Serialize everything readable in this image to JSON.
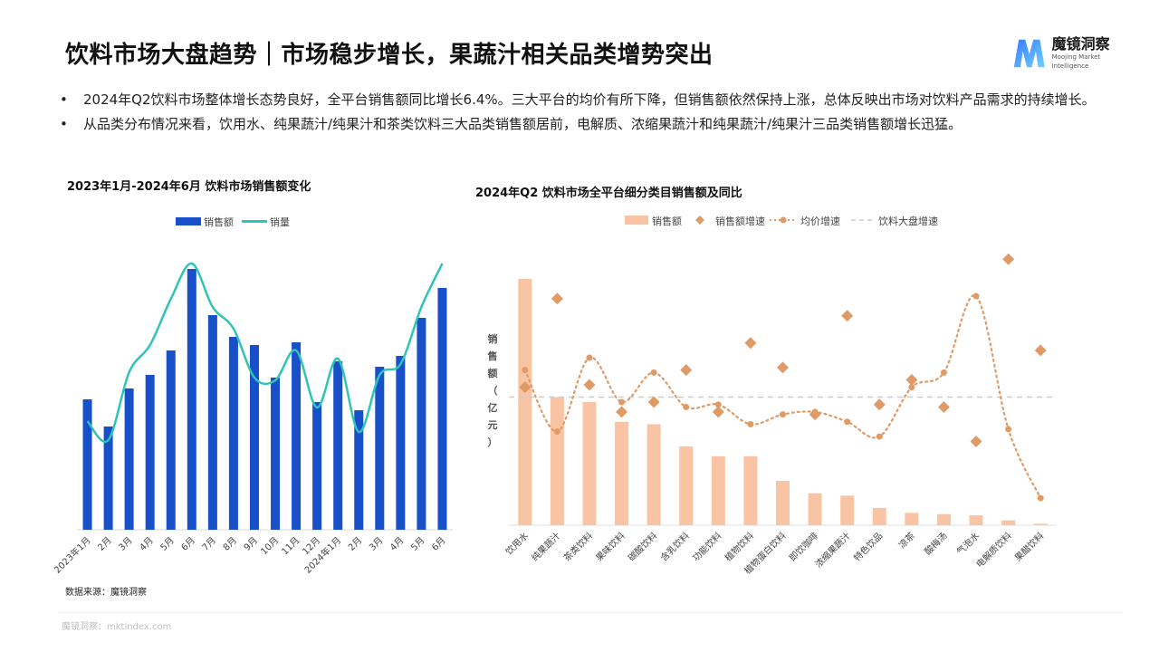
{
  "header": {
    "title": "饮料市场大盘趋势｜市场稳步增长，果蔬汁相关品类增势突出",
    "logo_cn": "魔镜洞察",
    "logo_en": "Moojing Market Intelligence"
  },
  "bullets": [
    "2024年Q2饮料市场整体增长态势良好，全平台销售额同比增长6.4%。三大平台的均价有所下降，但销售额依然保持上涨，总体反映出市场对饮料产品需求的持续增长。",
    "从品类分布情况来看，饮用水、纯果蔬汁/纯果汁和茶类饮料三大品类销售额居前，电解质、浓缩果蔬汁和纯果蔬汁/纯果汁三品类销售额增长迅猛。"
  ],
  "source": "数据来源：魔镜洞察",
  "footer": "魔镜洞察：mktindex.com",
  "colors": {
    "bar_blue": "#1750c8",
    "line_teal": "#2ec4b6",
    "bar_peach": "#f9c4a3",
    "marker_orange": "#e09a66",
    "dash_gray": "#cccccc"
  },
  "chart_data": [
    {
      "type": "bar",
      "title": "2023年1月-2024年6月 饮料市场销售额变化",
      "categories": [
        "2023年1月",
        "2月",
        "3月",
        "4月",
        "5月",
        "6月",
        "7月",
        "8月",
        "9月",
        "10月",
        "11月",
        "12月",
        "2024年1月",
        "2月",
        "3月",
        "4月",
        "5月",
        "6月"
      ],
      "series": [
        {
          "name": "销售额",
          "type": "bar",
          "values": [
            48,
            38,
            52,
            57,
            66,
            96,
            79,
            71,
            68,
            56,
            69,
            47,
            62,
            44,
            60,
            64,
            78,
            89
          ]
        },
        {
          "name": "销量",
          "type": "line",
          "values": [
            40,
            33,
            58,
            68,
            85,
            98,
            82,
            74,
            56,
            55,
            66,
            45,
            63,
            36,
            57,
            61,
            82,
            98
          ]
        }
      ],
      "legend": "top-center",
      "ylim": [
        0,
        100
      ],
      "grid": false,
      "ylabel": "",
      "xlabel": ""
    },
    {
      "type": "bar",
      "title": "2024年Q2 饮料市场全平台细分类目销售额及同比",
      "categories": [
        "饮用水",
        "纯果蔬汁",
        "茶类饮料",
        "果味饮料",
        "碳酸饮料",
        "含乳饮料",
        "功能饮料",
        "植物饮料",
        "植物蛋白饮料",
        "即饮咖啡",
        "浓缩果蔬汁",
        "特色饮品",
        "凉茶",
        "酸梅汤",
        "气泡水",
        "电解质饮料",
        "果醋饮料"
      ],
      "ylabel": "销售额（亿元）",
      "series": [
        {
          "name": "销售额",
          "type": "bar",
          "values": [
            100,
            52,
            50,
            42,
            41,
            32,
            28,
            28,
            18,
            13,
            12,
            7,
            5,
            4.5,
            4,
            2,
            0.6
          ]
        },
        {
          "name": "销售额增速",
          "type": "scatter",
          "values": [
            56,
            92,
            57,
            46,
            50,
            63,
            46,
            74,
            64,
            45,
            85,
            49,
            59,
            48,
            34,
            108,
            71
          ]
        },
        {
          "name": "均价增速",
          "type": "line",
          "values": [
            63,
            38,
            68,
            50,
            62,
            48,
            49,
            41,
            45,
            46,
            42,
            36,
            56,
            62,
            93,
            39,
            11
          ]
        },
        {
          "name": "饮料大盘增速",
          "type": "reference-line",
          "value": 52
        }
      ],
      "legend": "top-center",
      "grid": false
    }
  ]
}
